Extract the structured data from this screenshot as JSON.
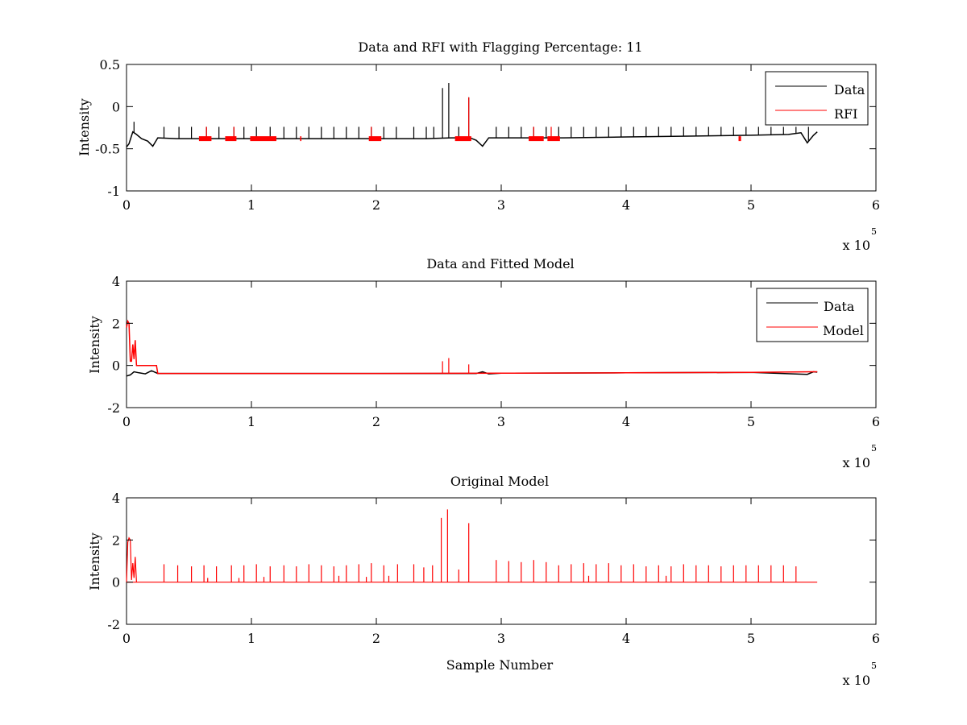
{
  "chart_data": [
    {
      "type": "line",
      "title": "Data and RFI with Flagging Percentage: 11",
      "xlabel": "",
      "ylabel": "Intensity",
      "xlim": [
        0,
        6
      ],
      "ylim": [
        -1,
        0.5
      ],
      "x_multiplier": "x 10",
      "x_multiplier_exponent": "5",
      "xticks": [
        0,
        1,
        2,
        3,
        4,
        5,
        6
      ],
      "xtick_labels": [
        "0",
        "1",
        "2",
        "3",
        "4",
        "5",
        "6"
      ],
      "yticks": [
        -1,
        -0.5,
        0,
        0.5
      ],
      "ytick_labels": [
        "-1",
        "-0.5",
        "0",
        "0.5"
      ],
      "legend_position": "top-right",
      "series": [
        {
          "name": "Data",
          "color": "#000000",
          "x": [
            0,
            0.02,
            0.05,
            0.08,
            0.12,
            0.17,
            0.21,
            0.25,
            0.4,
            0.8,
            1.2,
            1.6,
            2.0,
            2.4,
            2.6,
            2.75,
            2.8,
            2.85,
            2.9,
            3.0,
            3.5,
            4.0,
            4.5,
            5.0,
            5.3,
            5.4,
            5.45,
            5.5,
            5.53
          ],
          "y": [
            -0.48,
            -0.44,
            -0.3,
            -0.33,
            -0.38,
            -0.41,
            -0.47,
            -0.37,
            -0.38,
            -0.38,
            -0.38,
            -0.38,
            -0.38,
            -0.38,
            -0.37,
            -0.37,
            -0.4,
            -0.47,
            -0.37,
            -0.37,
            -0.37,
            -0.36,
            -0.35,
            -0.34,
            -0.33,
            -0.31,
            -0.43,
            -0.34,
            -0.3
          ],
          "spikes": [
            [
              0.06,
              -0.18
            ],
            [
              0.3,
              -0.24
            ],
            [
              0.42,
              -0.24
            ],
            [
              0.52,
              -0.24
            ],
            [
              0.64,
              -0.24
            ],
            [
              0.74,
              -0.24
            ],
            [
              0.86,
              -0.24
            ],
            [
              0.94,
              -0.24
            ],
            [
              1.04,
              -0.24
            ],
            [
              1.15,
              -0.24
            ],
            [
              1.26,
              -0.24
            ],
            [
              1.36,
              -0.24
            ],
            [
              1.46,
              -0.24
            ],
            [
              1.56,
              -0.24
            ],
            [
              1.66,
              -0.24
            ],
            [
              1.76,
              -0.24
            ],
            [
              1.86,
              -0.24
            ],
            [
              1.96,
              -0.24
            ],
            [
              2.06,
              -0.24
            ],
            [
              2.16,
              -0.24
            ],
            [
              2.3,
              -0.24
            ],
            [
              2.4,
              -0.24
            ],
            [
              2.46,
              -0.24
            ],
            [
              2.53,
              0.22
            ],
            [
              2.58,
              0.28
            ],
            [
              2.66,
              -0.24
            ],
            [
              2.74,
              0.11
            ],
            [
              2.96,
              -0.24
            ],
            [
              3.06,
              -0.24
            ],
            [
              3.16,
              -0.24
            ],
            [
              3.26,
              -0.24
            ],
            [
              3.36,
              -0.24
            ],
            [
              3.46,
              -0.24
            ],
            [
              3.56,
              -0.24
            ],
            [
              3.66,
              -0.24
            ],
            [
              3.76,
              -0.24
            ],
            [
              3.86,
              -0.24
            ],
            [
              3.96,
              -0.24
            ],
            [
              4.06,
              -0.24
            ],
            [
              4.16,
              -0.24
            ],
            [
              4.26,
              -0.24
            ],
            [
              4.36,
              -0.24
            ],
            [
              4.46,
              -0.24
            ],
            [
              4.56,
              -0.24
            ],
            [
              4.66,
              -0.24
            ],
            [
              4.76,
              -0.24
            ],
            [
              4.86,
              -0.24
            ],
            [
              4.96,
              -0.24
            ],
            [
              5.06,
              -0.24
            ],
            [
              5.16,
              -0.24
            ],
            [
              5.26,
              -0.24
            ],
            [
              5.36,
              -0.24
            ],
            [
              5.46,
              -0.24
            ]
          ]
        },
        {
          "name": "RFI",
          "color": "#ff0000",
          "segments": [
            [
              0.58,
              0.68
            ],
            [
              0.79,
              0.88
            ],
            [
              0.99,
              1.2
            ],
            [
              1.39,
              1.4
            ],
            [
              1.94,
              2.04
            ],
            [
              2.63,
              2.76
            ],
            [
              3.22,
              3.34
            ],
            [
              3.37,
              3.47
            ],
            [
              4.9,
              4.92
            ]
          ],
          "level": -0.38,
          "spikes": [
            [
              0.64,
              -0.24
            ],
            [
              0.86,
              -0.24
            ],
            [
              1.96,
              -0.24
            ],
            [
              2.74,
              0.11
            ],
            [
              3.26,
              -0.24
            ],
            [
              3.4,
              -0.24
            ]
          ]
        }
      ]
    },
    {
      "type": "line",
      "title": "Data and Fitted Model",
      "xlabel": "",
      "ylabel": "Intensity",
      "xlim": [
        0,
        6
      ],
      "ylim": [
        -2,
        4
      ],
      "x_multiplier": "x 10",
      "x_multiplier_exponent": "5",
      "xticks": [
        0,
        1,
        2,
        3,
        4,
        5,
        6
      ],
      "xtick_labels": [
        "0",
        "1",
        "2",
        "3",
        "4",
        "5",
        "6"
      ],
      "yticks": [
        -2,
        0,
        2,
        4
      ],
      "ytick_labels": [
        "-2",
        "0",
        "2",
        "4"
      ],
      "legend_position": "top-right",
      "series": [
        {
          "name": "Data",
          "color": "#000000",
          "x": [
            0,
            0.03,
            0.06,
            0.1,
            0.15,
            0.2,
            0.25,
            1.0,
            2.0,
            2.8,
            2.85,
            2.9,
            3.0,
            4.0,
            5.0,
            5.45,
            5.5,
            5.53
          ],
          "y": [
            -0.5,
            -0.45,
            -0.3,
            -0.35,
            -0.4,
            -0.25,
            -0.38,
            -0.38,
            -0.38,
            -0.38,
            -0.3,
            -0.4,
            -0.37,
            -0.35,
            -0.33,
            -0.42,
            -0.3,
            -0.32
          ]
        },
        {
          "name": "Model",
          "color": "#ff0000",
          "x": [
            0,
            0.01,
            0.02,
            0.03,
            0.04,
            0.05,
            0.06,
            0.07,
            0.08,
            0.1,
            0.15,
            0.2,
            0.24,
            0.25,
            1.0,
            2.0,
            3.0,
            4.0,
            5.0,
            5.5,
            5.53
          ],
          "y": [
            1.8,
            2.1,
            2.0,
            0.2,
            0.2,
            1.0,
            0.3,
            1.2,
            0.0,
            0.0,
            0.0,
            0.0,
            0.0,
            -0.38,
            -0.38,
            -0.38,
            -0.37,
            -0.35,
            -0.33,
            -0.3,
            -0.3
          ],
          "spikes": [
            [
              2.53,
              0.2
            ],
            [
              2.58,
              0.35
            ],
            [
              2.74,
              0.05
            ]
          ]
        }
      ]
    },
    {
      "type": "line",
      "title": "Original Model",
      "xlabel": "Sample Number",
      "ylabel": "Intensity",
      "xlim": [
        0,
        6
      ],
      "ylim": [
        -2,
        4
      ],
      "x_multiplier": "x 10",
      "x_multiplier_exponent": "5",
      "xticks": [
        0,
        1,
        2,
        3,
        4,
        5,
        6
      ],
      "xtick_labels": [
        "0",
        "1",
        "2",
        "3",
        "4",
        "5",
        "6"
      ],
      "yticks": [
        -2,
        0,
        2,
        4
      ],
      "ytick_labels": [
        "-2",
        "0",
        "2",
        "4"
      ],
      "series": [
        {
          "color": "#ff0000",
          "baseline": 0,
          "x_end": 5.53,
          "initial": [
            [
              0,
              0
            ],
            [
              0.01,
              1.9
            ],
            [
              0.02,
              2.1
            ],
            [
              0.03,
              2.0
            ],
            [
              0.04,
              0.1
            ],
            [
              0.05,
              0.9
            ],
            [
              0.06,
              0.2
            ],
            [
              0.07,
              1.2
            ],
            [
              0.08,
              0.0
            ]
          ],
          "spikes": [
            [
              0.3,
              0.85
            ],
            [
              0.41,
              0.8
            ],
            [
              0.52,
              0.75
            ],
            [
              0.62,
              0.8
            ],
            [
              0.65,
              0.2
            ],
            [
              0.72,
              0.75
            ],
            [
              0.84,
              0.8
            ],
            [
              0.9,
              0.2
            ],
            [
              0.94,
              0.8
            ],
            [
              1.04,
              0.85
            ],
            [
              1.1,
              0.25
            ],
            [
              1.15,
              0.75
            ],
            [
              1.26,
              0.8
            ],
            [
              1.36,
              0.75
            ],
            [
              1.46,
              0.85
            ],
            [
              1.56,
              0.8
            ],
            [
              1.66,
              0.75
            ],
            [
              1.7,
              0.3
            ],
            [
              1.76,
              0.8
            ],
            [
              1.86,
              0.85
            ],
            [
              1.92,
              0.25
            ],
            [
              1.96,
              0.9
            ],
            [
              2.06,
              0.8
            ],
            [
              2.1,
              0.3
            ],
            [
              2.17,
              0.85
            ],
            [
              2.3,
              0.85
            ],
            [
              2.38,
              0.7
            ],
            [
              2.45,
              0.8
            ],
            [
              2.52,
              3.05
            ],
            [
              2.57,
              3.45
            ],
            [
              2.66,
              0.6
            ],
            [
              2.74,
              2.8
            ],
            [
              2.96,
              1.05
            ],
            [
              3.06,
              1.0
            ],
            [
              3.16,
              0.95
            ],
            [
              3.26,
              1.05
            ],
            [
              3.36,
              0.95
            ],
            [
              3.46,
              0.8
            ],
            [
              3.56,
              0.85
            ],
            [
              3.66,
              0.9
            ],
            [
              3.7,
              0.3
            ],
            [
              3.76,
              0.85
            ],
            [
              3.86,
              0.9
            ],
            [
              3.96,
              0.8
            ],
            [
              4.06,
              0.85
            ],
            [
              4.16,
              0.75
            ],
            [
              4.26,
              0.8
            ],
            [
              4.32,
              0.3
            ],
            [
              4.36,
              0.75
            ],
            [
              4.46,
              0.85
            ],
            [
              4.56,
              0.8
            ],
            [
              4.66,
              0.8
            ],
            [
              4.76,
              0.75
            ],
            [
              4.86,
              0.8
            ],
            [
              4.96,
              0.8
            ],
            [
              5.06,
              0.8
            ],
            [
              5.16,
              0.8
            ],
            [
              5.26,
              0.8
            ],
            [
              5.36,
              0.75
            ]
          ]
        }
      ]
    }
  ]
}
